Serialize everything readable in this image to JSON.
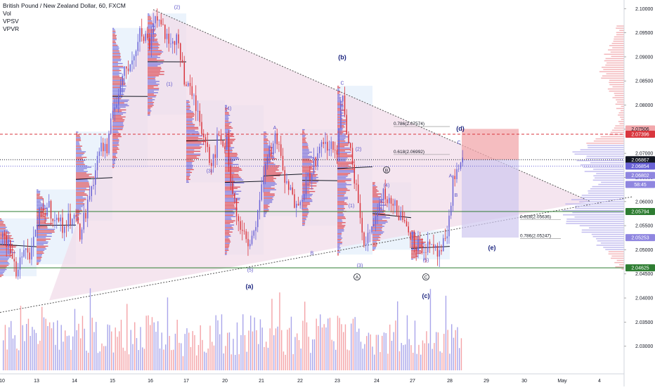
{
  "legend": {
    "symbol_line": "British Pound / New Zealand Dollar, 60, FXCM",
    "indicators": [
      "Vol",
      "VPSV",
      "VPVR"
    ]
  },
  "colors": {
    "bull": "#6a63d6",
    "bear": "#d9363e",
    "triangle_fill": "#f2dcea",
    "support_line": "#2e7d32",
    "short_box_red": "#f2a7ab",
    "short_box_blue": "#cfc8ef"
  },
  "chart_data": {
    "type": "candlestick",
    "symbol": "British Pound / New Zealand Dollar",
    "timeframe": "60",
    "ylim": [
      2.025,
      2.1015
    ],
    "x_tick_labels": [
      "10",
      "13",
      "14",
      "15",
      "16",
      "17",
      "20",
      "21",
      "22",
      "23",
      "24",
      "27",
      "28",
      "29",
      "30",
      "May",
      "4"
    ],
    "y_tick_labels": [
      "2.10000",
      "2.09500",
      "2.09000",
      "2.08500",
      "2.08000",
      "2.07500",
      "2.07000",
      "2.06500",
      "2.06000",
      "2.05500",
      "2.05000",
      "2.04500",
      "2.04000",
      "2.03500",
      "2.03000"
    ],
    "y_ticks": [
      2.1,
      2.095,
      2.09,
      2.085,
      2.08,
      2.075,
      2.07,
      2.065,
      2.06,
      2.055,
      2.05,
      2.045,
      2.04,
      2.035,
      2.03
    ],
    "price_path": [
      [
        0,
        2.053
      ],
      [
        12,
        2.0505
      ],
      [
        22,
        2.0455
      ],
      [
        32,
        2.05
      ],
      [
        44,
        2.049
      ],
      [
        55,
        2.057
      ],
      [
        68,
        2.059
      ],
      [
        80,
        2.056
      ],
      [
        92,
        2.0545
      ],
      [
        104,
        2.0585
      ],
      [
        112,
        2.053
      ],
      [
        122,
        2.058
      ],
      [
        134,
        2.066
      ],
      [
        142,
        2.072
      ],
      [
        152,
        2.07
      ],
      [
        160,
        2.079
      ],
      [
        172,
        2.085
      ],
      [
        185,
        2.089
      ],
      [
        198,
        2.095
      ],
      [
        212,
        2.093
      ],
      [
        220,
        2.099
      ],
      [
        232,
        2.096
      ],
      [
        242,
        2.091
      ],
      [
        252,
        2.095
      ],
      [
        262,
        2.085
      ],
      [
        275,
        2.081
      ],
      [
        290,
        2.074
      ],
      [
        300,
        2.068
      ],
      [
        310,
        2.073
      ],
      [
        322,
        2.072
      ],
      [
        330,
        2.062
      ],
      [
        342,
        2.054
      ],
      [
        355,
        2.05
      ],
      [
        368,
        2.06
      ],
      [
        380,
        2.07
      ],
      [
        393,
        2.073
      ],
      [
        405,
        2.064
      ],
      [
        418,
        2.06
      ],
      [
        430,
        2.062
      ],
      [
        445,
        2.068
      ],
      [
        462,
        2.072
      ],
      [
        478,
        2.07
      ],
      [
        486,
        2.082
      ],
      [
        496,
        2.071
      ],
      [
        508,
        2.062
      ],
      [
        516,
        2.05
      ],
      [
        530,
        2.056
      ],
      [
        545,
        2.062
      ],
      [
        560,
        2.059
      ],
      [
        575,
        2.056
      ],
      [
        592,
        2.051
      ],
      [
        606,
        2.0505
      ],
      [
        622,
        2.049
      ],
      [
        636,
        2.052
      ],
      [
        644,
        2.064
      ],
      [
        654,
        2.0695
      ],
      [
        658,
        2.0687
      ]
    ],
    "volume_range": [
      0,
      100
    ],
    "candle_count": 240,
    "annotations": {
      "waves": [
        {
          "label": "(2)",
          "x": 252,
          "price": 2.1
        },
        {
          "label": "(1)",
          "x": 241,
          "price": 2.084
        },
        {
          "label": "(3)",
          "x": 298,
          "price": 2.066
        },
        {
          "label": "(4)",
          "x": 325,
          "price": 2.079
        },
        {
          "label": "A",
          "x": 391,
          "price": 2.075
        },
        {
          "label": "B",
          "x": 444,
          "price": 2.049
        },
        {
          "label": "(5)",
          "x": 356,
          "price": 2.0455
        },
        {
          "label": "(b)",
          "x": 487,
          "price": 2.0895,
          "bold": true
        },
        {
          "label": "C",
          "x": 487,
          "price": 2.0842
        },
        {
          "label": "(2)",
          "x": 510,
          "price": 2.0705
        },
        {
          "label": "(1)",
          "x": 500,
          "price": 2.0588
        },
        {
          "label": "(4)",
          "x": 550,
          "price": 2.063
        },
        {
          "label": "(3)",
          "x": 512,
          "price": 2.0464
        },
        {
          "label": "(5)",
          "x": 606,
          "price": 2.0475
        },
        {
          "label": "A",
          "x": 641,
          "price": 2.065
        },
        {
          "label": "B",
          "x": 649,
          "price": 2.061
        },
        {
          "label": "C",
          "x": 653,
          "price": 2.0719
        },
        {
          "label": "(d)",
          "x": 655,
          "price": 2.0747,
          "bold": true
        },
        {
          "label": "(a)",
          "x": 355,
          "price": 2.042,
          "bold": true
        },
        {
          "label": "(c)",
          "x": 606,
          "price": 2.04,
          "bold": true
        },
        {
          "label": "(e)",
          "x": 700,
          "price": 2.05,
          "bold": true
        }
      ],
      "circled": [
        {
          "label": "B",
          "x": 550,
          "price": 2.0662
        },
        {
          "label": "A",
          "x": 508,
          "price": 2.044
        },
        {
          "label": "C",
          "x": 606,
          "price": 2.044
        }
      ],
      "fib_labels": [
        {
          "text": "0.786(2.07574)",
          "price": 2.0757
        },
        {
          "text": "0.618(2.06992)",
          "price": 2.0699
        },
        {
          "text": "0.618(2.05636)",
          "price": 2.0564
        },
        {
          "text": "0.786(2.05247)",
          "price": 2.0525
        }
      ]
    },
    "price_labels": [
      {
        "text": "2.07506",
        "price": 2.07506,
        "color": "#f2a7ab",
        "text_color": "#131722"
      },
      {
        "text": "2.07396",
        "price": 2.07396,
        "color": "#d9363e",
        "text_color": "#ffffff"
      },
      {
        "text": "2.06867",
        "price": 2.06867,
        "color": "#131722",
        "text_color": "#ffffff"
      },
      {
        "text": "2.06854",
        "price": 2.06734,
        "color": "#6a63d6",
        "text_color": "#ffffff"
      },
      {
        "text": "2.06802",
        "price": 2.06542,
        "color": "#8f86e0",
        "text_color": "#ffffff"
      },
      {
        "text": "58:45",
        "price": 2.06355,
        "color": "#8f86e0",
        "text_color": "#ffffff"
      },
      {
        "text": "2.05794",
        "price": 2.05794,
        "color": "#2e7d32",
        "text_color": "#ffffff"
      },
      {
        "text": "2.05253",
        "price": 2.05253,
        "color": "#8f86e0",
        "text_color": "#ffffff"
      },
      {
        "text": "2.04625",
        "price": 2.04625,
        "color": "#2e7d32",
        "text_color": "#ffffff"
      }
    ],
    "horizontal_lines": [
      {
        "price": 2.05794,
        "color": "#2e7d32",
        "style": "solid"
      },
      {
        "price": 2.04625,
        "color": "#2e7d32",
        "style": "solid"
      },
      {
        "price": 2.07396,
        "color": "#d9363e",
        "style": "dashed"
      },
      {
        "price": 2.06867,
        "color": "#131722",
        "style": "dotted"
      },
      {
        "price": 2.06734,
        "color": "#6a63d6",
        "style": "dotted"
      }
    ],
    "triangle": {
      "upper": [
        [
          0,
          2.056
        ],
        [
          218,
          2.0998
        ],
        [
          840,
          2.06
        ]
      ],
      "lower": [
        [
          0,
          2.037
        ],
        [
          360,
          2.0455
        ],
        [
          840,
          2.06
        ]
      ]
    },
    "short_position": {
      "x_start": 657,
      "x_end": 738,
      "stop": 2.07506,
      "entry": 2.06867,
      "target": 2.05253
    }
  }
}
